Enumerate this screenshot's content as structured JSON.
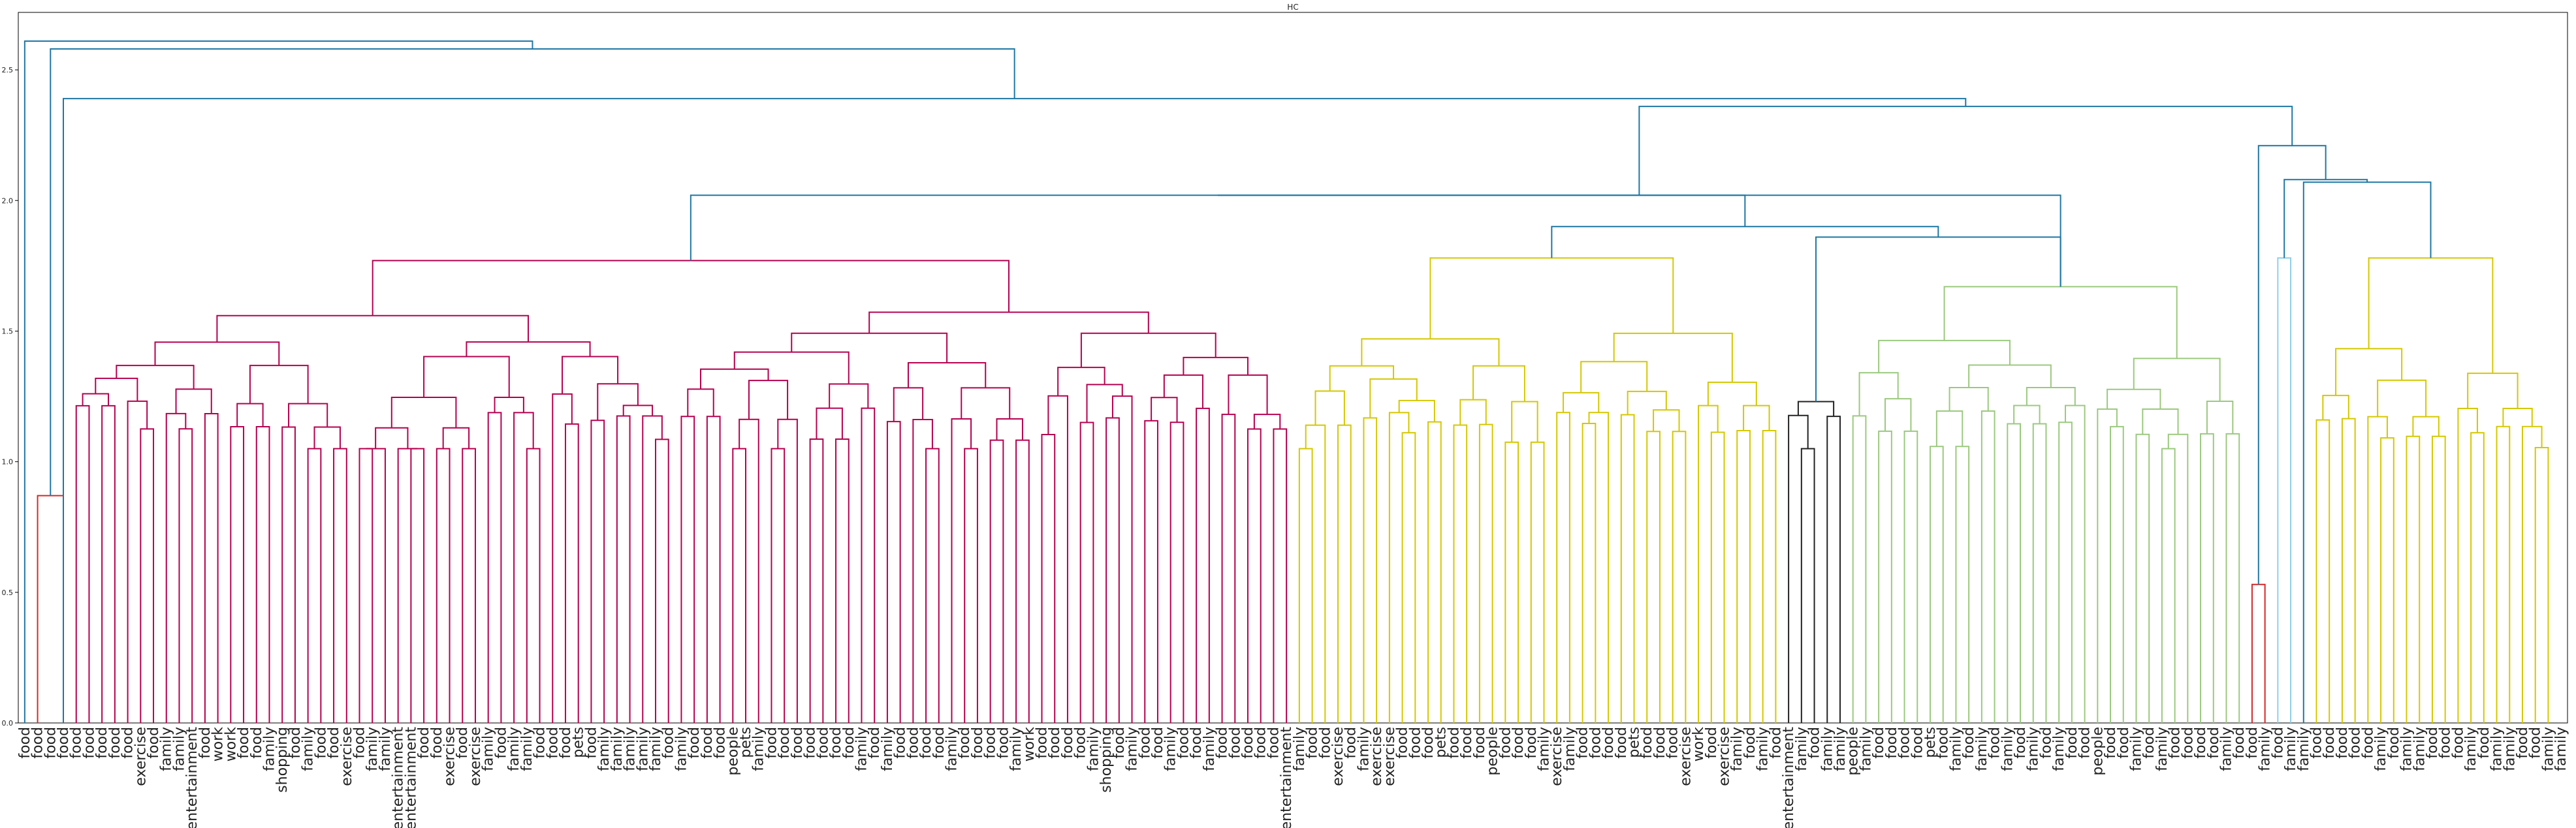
{
  "chart_data": {
    "type": "dendrogram",
    "title": "HC",
    "xlabel": "",
    "ylabel": "",
    "ylim": [
      0,
      2.72
    ],
    "yticks": [
      0.0,
      0.5,
      1.0,
      1.5,
      2.0,
      2.5
    ],
    "grid": false,
    "colors": {
      "magenta": "#b5004f",
      "yellow": "#d4c800",
      "green": "#9bc97e",
      "black": "#222222",
      "blue": "#1f77a4",
      "red": "#d62728",
      "lightblue": "#8ecfe6"
    },
    "leaf_labels": [
      "food",
      "food",
      "food",
      "food",
      "food",
      "food",
      "food",
      "food",
      "food",
      "exercise",
      "food",
      "family",
      "family",
      "entertainment",
      "food",
      "work",
      "work",
      "food",
      "food",
      "family",
      "shopping",
      "food",
      "family",
      "food",
      "food",
      "exercise",
      "food",
      "family",
      "family",
      "entertainment",
      "entertainment",
      "food",
      "food",
      "exercise",
      "food",
      "exercise",
      "family",
      "food",
      "family",
      "family",
      "food",
      "food",
      "food",
      "pets",
      "food",
      "family",
      "family",
      "family",
      "family",
      "family",
      "food",
      "family",
      "food",
      "food",
      "food",
      "people",
      "pets",
      "family",
      "food",
      "food",
      "food",
      "food",
      "food",
      "food",
      "food",
      "family",
      "food",
      "family",
      "food",
      "food",
      "food",
      "food",
      "family",
      "food",
      "food",
      "food",
      "food",
      "family",
      "work",
      "food",
      "food",
      "food",
      "food",
      "family",
      "shopping",
      "food",
      "family",
      "food",
      "food",
      "family",
      "food",
      "food",
      "family",
      "food",
      "food",
      "food",
      "food",
      "food",
      "entertainment",
      "family",
      "food",
      "food",
      "exercise",
      "food",
      "family",
      "exercise",
      "exercise",
      "food",
      "food",
      "food",
      "pets",
      "food",
      "food",
      "food",
      "people",
      "food",
      "food",
      "food",
      "family",
      "exercise",
      "family",
      "food",
      "food",
      "food",
      "food",
      "pets",
      "food",
      "food",
      "food",
      "exercise",
      "work",
      "food",
      "exercise",
      "family",
      "food",
      "family",
      "food",
      "entertainment",
      "family",
      "food",
      "family",
      "family",
      "people",
      "family",
      "food",
      "food",
      "food",
      "food",
      "pets",
      "food",
      "family",
      "food",
      "family",
      "food",
      "family",
      "food",
      "family",
      "food",
      "family",
      "food",
      "food",
      "people",
      "food",
      "food",
      "family",
      "food",
      "family",
      "food",
      "food",
      "food",
      "food",
      "family",
      "food",
      "food",
      "family",
      "food",
      "family",
      "family",
      "food",
      "food",
      "food",
      "food",
      "food",
      "family",
      "food",
      "family",
      "family",
      "food",
      "food",
      "food",
      "family",
      "food",
      "family",
      "family",
      "food",
      "food",
      "family",
      "family"
    ],
    "clusters": [
      {
        "color": "red",
        "from_leaf": 1,
        "to_leaf": 3,
        "height": 0.87,
        "shape": "pair"
      },
      {
        "color": "magenta",
        "from_leaf": 4,
        "to_leaf": 98,
        "height": 1.77,
        "shape": "cluster"
      },
      {
        "color": "yellow",
        "from_leaf": 99,
        "to_leaf": 136,
        "height": 1.78,
        "shape": "cluster"
      },
      {
        "color": "black",
        "from_leaf": 137,
        "to_leaf": 141,
        "height": 1.23,
        "shape": "cluster"
      },
      {
        "color": "green",
        "from_leaf": 142,
        "to_leaf": 172,
        "height": 1.67,
        "shape": "cluster"
      },
      {
        "color": "red",
        "from_leaf": 173,
        "to_leaf": 174,
        "height": 0.53,
        "shape": "pair"
      },
      {
        "color": "lightblue",
        "from_leaf": 175,
        "to_leaf": 176,
        "height": 1.78,
        "shape": "pair"
      },
      {
        "color": "yellow",
        "from_leaf": 178,
        "to_leaf": 196,
        "height": 1.78,
        "shape": "cluster"
      }
    ],
    "top_links": [
      {
        "left": "leaf:0",
        "right": "node:A",
        "height": 2.61
      },
      {
        "left": "cluster:0",
        "right": "node:B",
        "height": 2.58,
        "id": "A"
      },
      {
        "left": "leaf:3",
        "right": "node:C",
        "height": 2.39,
        "id": "B"
      },
      {
        "left": "node:D",
        "right": "node:E",
        "height": 2.36,
        "id": "C"
      },
      {
        "left": "node:F",
        "right": "cluster:4",
        "height": 2.02,
        "id": "D"
      },
      {
        "left": "cluster:1",
        "right": "node:G",
        "height": 2.02,
        "id": "F"
      },
      {
        "left": "cluster:2",
        "right": "node:H",
        "height": 1.9,
        "id": "G"
      },
      {
        "left": "cluster:3",
        "right": "cluster:4",
        "height": 1.86,
        "id": "H"
      },
      {
        "left": "cluster:5",
        "right": "node:I",
        "height": 2.21,
        "id": "E"
      },
      {
        "left": "cluster:6",
        "right": "node:J",
        "height": 2.08,
        "id": "I"
      },
      {
        "left": "leaf:177",
        "right": "cluster:7",
        "height": 2.07,
        "id": "J"
      }
    ]
  }
}
